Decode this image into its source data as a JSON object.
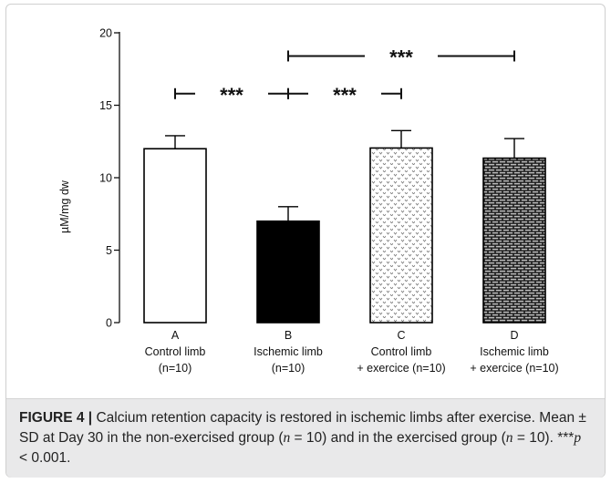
{
  "chart_data": {
    "type": "bar",
    "categories": [
      "A",
      "B",
      "C",
      "D"
    ],
    "category_lines": [
      [
        "A",
        "Control limb",
        "(n=10)"
      ],
      [
        "B",
        "Ischemic limb",
        "(n=10)"
      ],
      [
        "C",
        "Control limb",
        "+ exercice (n=10)"
      ],
      [
        "D",
        "Ischemic limb",
        "+ exercice (n=10)"
      ]
    ],
    "values": [
      12.0,
      7.0,
      12.05,
      11.35
    ],
    "errors": [
      0.9,
      1.0,
      1.2,
      1.35
    ],
    "fills": [
      "white",
      "black",
      "dotted",
      "brick"
    ],
    "ylabel": "µM/mg dw",
    "ylim": [
      0,
      20
    ],
    "yticks": [
      0,
      5,
      10,
      15,
      20
    ],
    "ytick_labels": [
      "0",
      "5",
      "10",
      "15",
      "20"
    ],
    "grid": false,
    "significance": [
      {
        "from": 0,
        "to": 1,
        "y": 15.8,
        "label": "***"
      },
      {
        "from": 1,
        "to": 2,
        "y": 15.8,
        "label": "***"
      },
      {
        "from": 1,
        "to": 3,
        "y": 18.4,
        "label": "***"
      }
    ]
  },
  "caption": {
    "label": "FIGURE 4 |",
    "text1": " Calcium retention capacity is restored in ischemic limbs after exercise. Mean ± SD at Day 30 in the non-exercised group (",
    "n_var1": "n",
    "eq1": " = 10) and in the exercised group (",
    "n_var2": "n",
    "eq2": " = 10). ***",
    "p_var": "p",
    "tail": " < 0.001."
  }
}
